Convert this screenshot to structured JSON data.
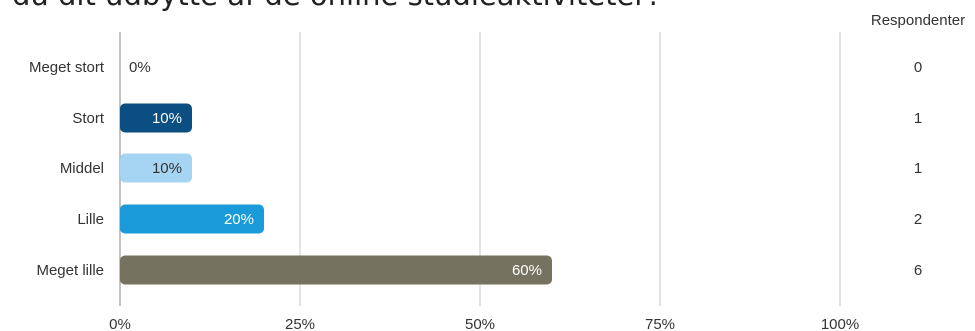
{
  "title": "du dit udbytte af de online studieaktiviteter?",
  "respondents_header": "Respondenter",
  "colors": {
    "grid": "#c8c8c8",
    "axis": "#999999",
    "text": "#333333"
  },
  "chart_data": {
    "type": "bar",
    "orientation": "horizontal",
    "categories": [
      "Meget stort",
      "Stort",
      "Middel",
      "Lille",
      "Meget lille"
    ],
    "values": [
      0,
      10,
      10,
      20,
      60
    ],
    "value_labels": [
      "0%",
      "10%",
      "10%",
      "20%",
      "60%"
    ],
    "respondents": [
      0,
      1,
      1,
      2,
      6
    ],
    "colors": [
      "#7cc3ec",
      "#0a4e82",
      "#a6d4f3",
      "#1a9ad9",
      "#75725f"
    ],
    "label_colors": [
      "#333333",
      "#ffffff",
      "#333333",
      "#ffffff",
      "#ffffff"
    ],
    "xlim": [
      0,
      100
    ],
    "xticks": [
      "0%",
      "25%",
      "50%",
      "75%",
      "100%"
    ],
    "grid": true
  }
}
